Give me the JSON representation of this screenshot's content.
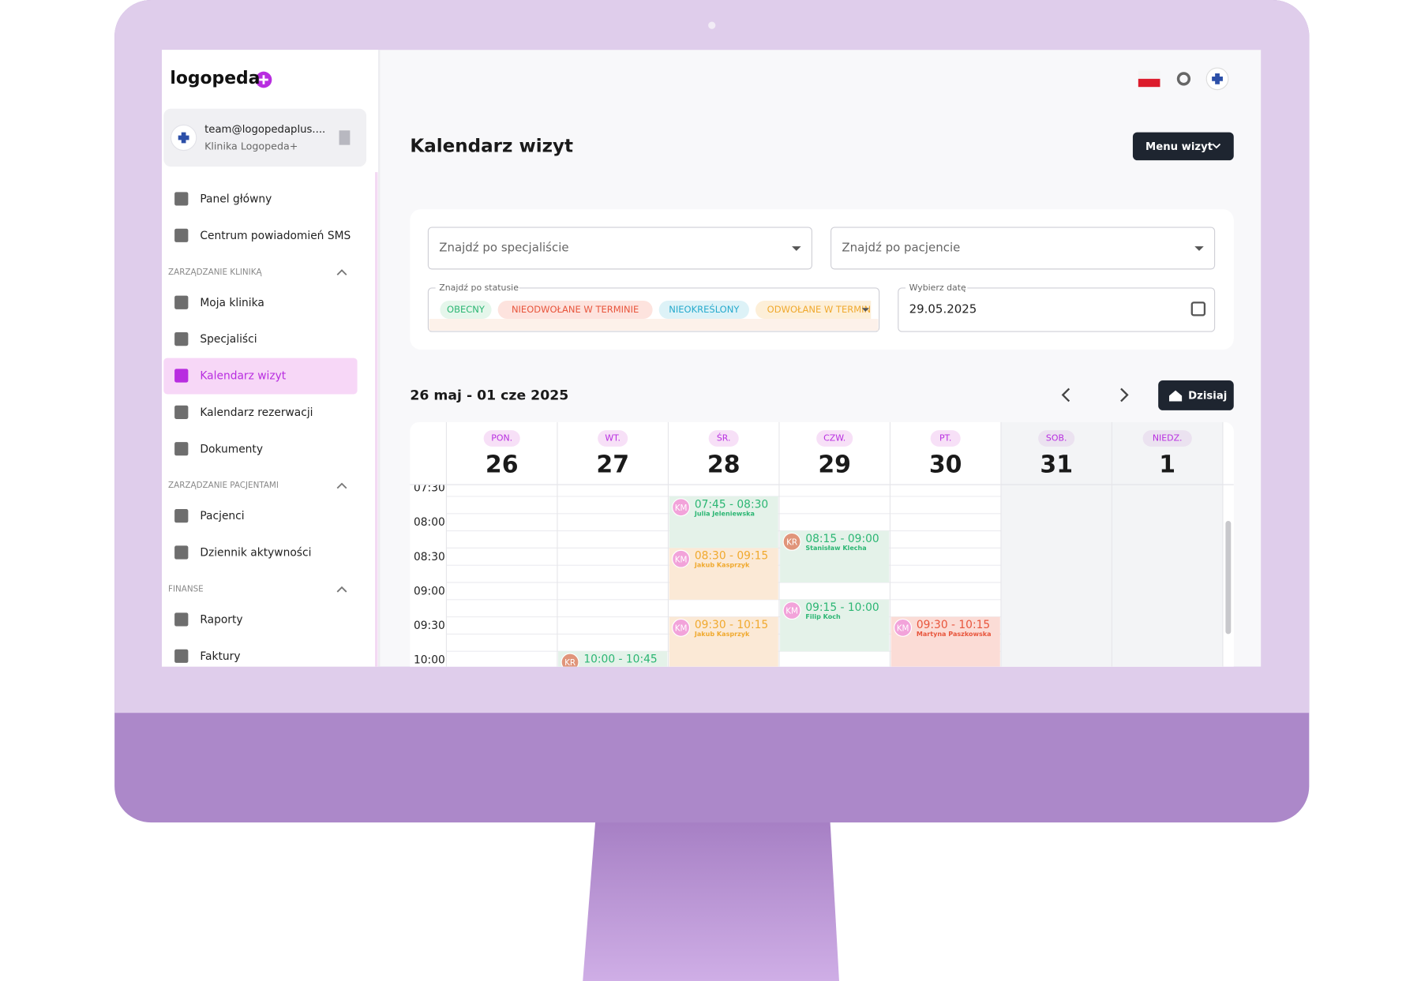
{
  "brand": "logopeda",
  "account": {
    "email": "team@logopedaplus....",
    "clinic": "Klinika Logopeda+"
  },
  "nav": [
    {
      "label": "Panel główny"
    },
    {
      "label": "Centrum powiadomień SMS"
    },
    {
      "section": "ZARZĄDZANIE KLINIKĄ"
    },
    {
      "label": "Moja klinika"
    },
    {
      "label": "Specjaliści"
    },
    {
      "label": "Kalendarz wizyt",
      "active": true
    },
    {
      "label": "Kalendarz rezerwacji"
    },
    {
      "label": "Dokumenty"
    },
    {
      "section": "ZARZĄDZANIE PACJENTAMI"
    },
    {
      "label": "Pacjenci"
    },
    {
      "label": "Dziennik aktywności"
    },
    {
      "section": "FINANSE"
    },
    {
      "label": "Raporty"
    },
    {
      "label": "Faktury"
    }
  ],
  "page_title": "Kalendarz wizyt",
  "menu_button": "Menu wizyt",
  "filters": {
    "specialist": "Znajdź po specjaliście",
    "patient": "Znajdź po pacjencie",
    "status_label": "Znajdź po statusie",
    "statuses": [
      {
        "label": "OBECNY",
        "color": "#2bb673",
        "bg": "#e5f6eb"
      },
      {
        "label": "NIEODWOŁANE W TERMINIE",
        "color": "#e8553c",
        "bg": "#fde3de"
      },
      {
        "label": "NIEOKREŚLONY",
        "color": "#26aacd",
        "bg": "#ddf2f7"
      },
      {
        "label": "ODWOŁANE W TERMINIE",
        "color": "#f0a92e",
        "bg": "#fdefd8"
      }
    ],
    "date_label": "Wybierz datę",
    "date": "29.05.2025"
  },
  "calendar": {
    "range": "26 maj - 01 cze 2025",
    "today": "Dzisiaj",
    "times": [
      "07:30",
      "08:00",
      "08:30",
      "09:00",
      "09:30",
      "10:00"
    ],
    "days": [
      {
        "name": "PON.",
        "date": 26,
        "events": []
      },
      {
        "name": "WT.",
        "date": 27,
        "events": [
          {
            "initials": "KR",
            "time": "10:00 - 10:45",
            "color": "#2bb673",
            "bg": "#e4f2e9",
            "avatar": "#e0957a"
          }
        ]
      },
      {
        "name": "ŚR.",
        "date": 28,
        "events": [
          {
            "initials": "KM",
            "time": "07:45 - 08:30",
            "patient": "Julia Jeleniewska",
            "color": "#2bb673",
            "bg": "#e4f2e9",
            "avatar": "#f2a3da"
          },
          {
            "initials": "KM",
            "time": "08:30 - 09:15",
            "patient": "Jakub Kasprzyk",
            "color": "#f0a92e",
            "bg": "#fbe9d6",
            "avatar": "#f2a3da"
          },
          {
            "initials": "KM",
            "time": "09:30 - 10:15",
            "patient": "Jakub Kasprzyk",
            "color": "#f0a92e",
            "bg": "#fbe9d6",
            "avatar": "#f2a3da"
          }
        ]
      },
      {
        "name": "CZW.",
        "date": 29,
        "events": [
          {
            "initials": "KR",
            "time": "08:15 - 09:00",
            "patient": "Stanisław Klecha",
            "color": "#2bb673",
            "bg": "#e4f2e9",
            "avatar": "#e0957a"
          },
          {
            "initials": "KM",
            "time": "09:15 - 10:00",
            "patient": "Filip Koch",
            "color": "#2bb673",
            "bg": "#e4f2e9",
            "avatar": "#f2a3da"
          }
        ]
      },
      {
        "name": "PT.",
        "date": 30,
        "events": [
          {
            "initials": "KM",
            "time": "09:30 - 10:15",
            "patient": "Martyna Paszkowska",
            "color": "#e8553c",
            "bg": "#fbdcd6",
            "avatar": "#f2a3da"
          }
        ]
      },
      {
        "name": "SOB.",
        "date": 31,
        "weekend": true,
        "events": []
      },
      {
        "name": "NIEDZ.",
        "date": 1,
        "weekend": true,
        "events": []
      }
    ]
  }
}
